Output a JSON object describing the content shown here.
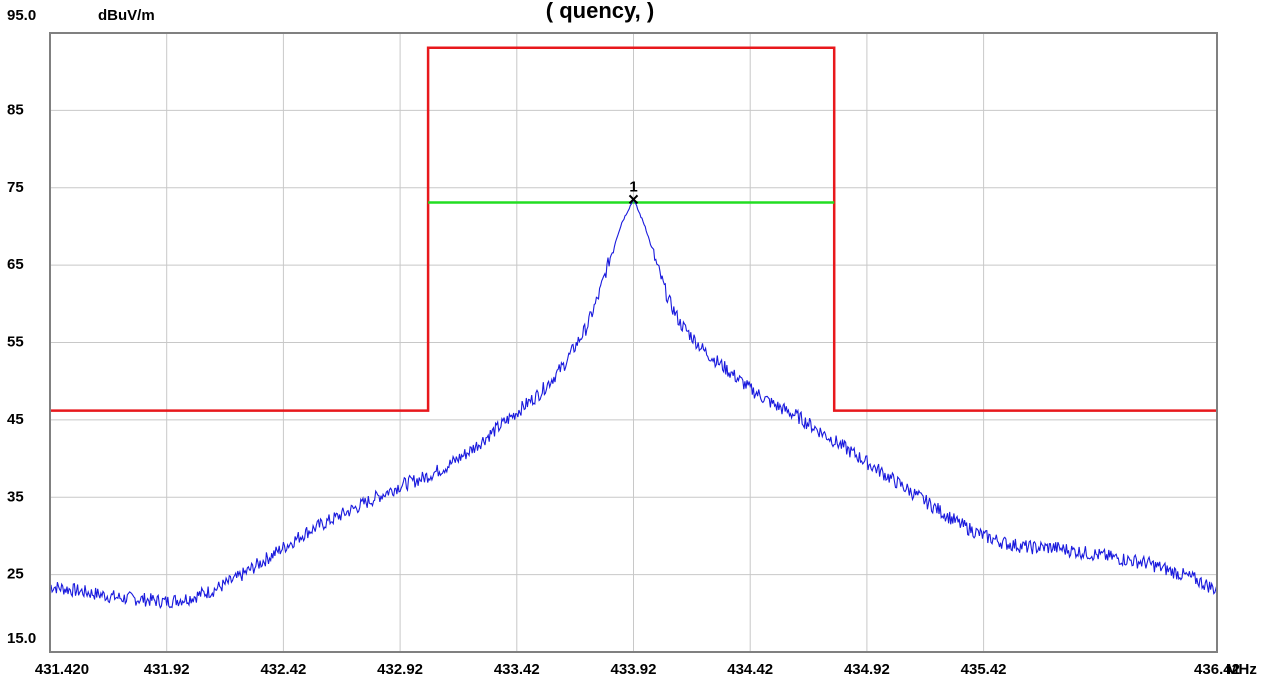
{
  "chart_data": {
    "type": "line",
    "title_partial": "(                     quency,          )",
    "ylabel": "dBuV/m",
    "xunit": "MHz",
    "ylim": [
      15.0,
      95.0
    ],
    "xlim": [
      431.42,
      436.42
    ],
    "y_top_label": "95.0",
    "y_bottom_label": "15.0",
    "y_tick_labels": [
      "85",
      "75",
      "65",
      "55",
      "45",
      "35",
      "25"
    ],
    "y_tick_values": [
      85,
      75,
      65,
      55,
      45,
      35,
      25
    ],
    "x_tick_labels": [
      "431.420",
      "431.92",
      "432.42",
      "432.92",
      "433.42",
      "433.92",
      "434.42",
      "434.92",
      "435.42",
      "436.42"
    ],
    "x_tick_values": [
      431.42,
      431.92,
      432.42,
      432.92,
      433.42,
      433.92,
      434.42,
      434.92,
      435.42,
      436.42
    ],
    "grid": true,
    "colors": {
      "limit": "#e8181c",
      "occupied_bw": "#22dd22",
      "trace": "#1a1add",
      "grid": "#c8c8c8",
      "frame": "#808080"
    },
    "limit_line": {
      "name": "limit",
      "x": [
        431.42,
        433.04,
        433.04,
        434.78,
        434.78,
        436.42
      ],
      "y": [
        46.2,
        46.2,
        93.1,
        93.1,
        46.2,
        46.2
      ]
    },
    "occupied_bandwidth_line": {
      "x": [
        433.04,
        434.78
      ],
      "y": [
        73.1,
        73.1
      ]
    },
    "marker": {
      "label": "1",
      "x": 433.92,
      "y": 73.5
    },
    "series": [
      {
        "x": [
          431.42,
          431.52,
          431.62,
          431.72,
          431.82,
          431.92,
          432.02,
          432.12,
          432.22,
          432.32,
          432.42,
          432.52,
          432.62,
          432.72,
          432.82,
          432.92,
          433.02,
          433.12,
          433.22,
          433.32,
          433.42,
          433.52,
          433.62,
          433.72,
          433.77,
          433.82,
          433.87,
          433.92,
          433.97,
          434.02,
          434.07,
          434.12,
          434.22,
          434.32,
          434.42,
          434.52,
          434.62,
          434.72,
          434.82,
          434.92,
          435.02,
          435.12,
          435.22,
          435.32,
          435.42,
          435.52,
          435.62,
          435.72,
          435.82,
          435.92,
          436.02,
          436.12,
          436.22,
          436.32,
          436.42
        ],
        "y": [
          23.5,
          23.0,
          22.5,
          22.0,
          21.8,
          21.5,
          22.0,
          23.0,
          24.5,
          26.5,
          28.5,
          30.5,
          32.0,
          33.5,
          35.0,
          36.5,
          37.5,
          39.0,
          41.0,
          43.5,
          46.0,
          48.5,
          52.0,
          57.0,
          61.0,
          66.0,
          70.5,
          73.5,
          70.0,
          65.0,
          60.5,
          57.5,
          54.0,
          51.5,
          49.0,
          47.0,
          45.5,
          43.5,
          41.5,
          39.5,
          37.5,
          35.5,
          33.5,
          31.5,
          30.0,
          29.0,
          28.5,
          28.5,
          28.0,
          27.5,
          27.0,
          26.5,
          25.5,
          24.5,
          23.0
        ]
      }
    ]
  }
}
